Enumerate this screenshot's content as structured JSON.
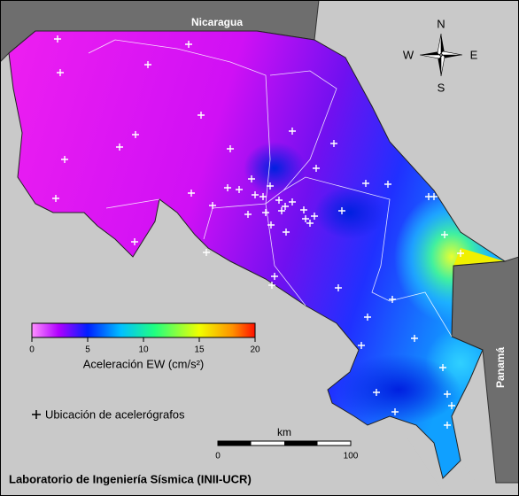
{
  "map": {
    "labels": {
      "nicaragua": "Nicaragua",
      "panama": "Panamá"
    },
    "compass": {
      "n": "N",
      "s": "S",
      "w": "W",
      "e": "E"
    }
  },
  "colorbar": {
    "label": "Aceleración EW (cm/s²)",
    "range": [
      0,
      20
    ],
    "ticks": [
      0,
      5,
      10,
      15,
      20
    ]
  },
  "legend": {
    "stations": "Ubicación de acelerógrafos"
  },
  "scale_bar": {
    "unit": "km",
    "range": [
      0,
      100
    ],
    "ticks": [
      0,
      100
    ]
  },
  "footer": "Laboratorio de Ingeniería Sísmica (INII-UCR)"
}
